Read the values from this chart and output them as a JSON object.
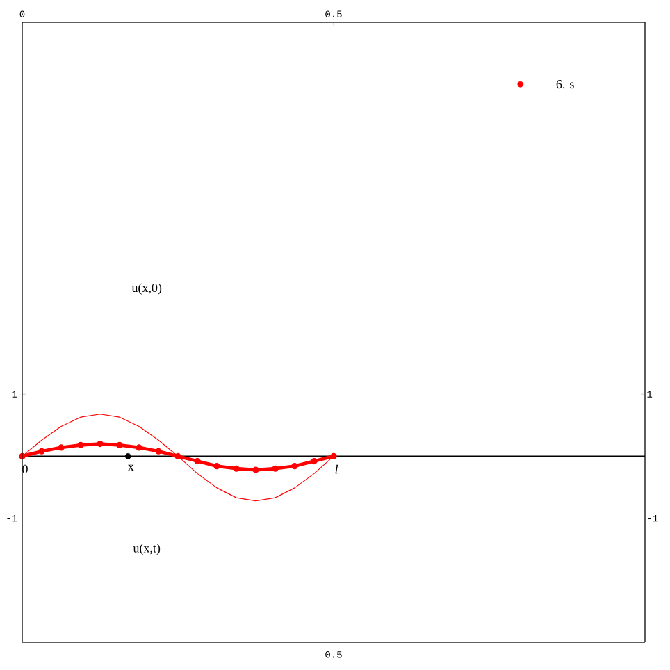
{
  "chart_data": {
    "type": "line",
    "xlim": [
      0,
      1
    ],
    "xticks": [
      {
        "value": 0,
        "label": "0"
      },
      {
        "value": 0.5,
        "label": "0.5"
      }
    ],
    "ylim": [
      -3,
      7
    ],
    "yticks": [
      {
        "value": -1,
        "label": "-1"
      },
      {
        "value": 1,
        "label": "1"
      }
    ],
    "y2lim": [
      -3,
      7
    ],
    "y2ticks": [
      {
        "value": -1,
        "label": "-1"
      },
      {
        "value": 1,
        "label": "1"
      }
    ],
    "series": [
      {
        "color": "#ff0000",
        "x": [
          0,
          0.03125,
          0.0625,
          0.09375,
          0.125,
          0.15625,
          0.1875,
          0.21875,
          0.25,
          0.28125,
          0.3125,
          0.34375,
          0.375,
          0.40625,
          0.4375,
          0.46875,
          0.5
        ],
        "values": [
          0,
          0.26,
          0.48,
          0.63,
          0.68,
          0.63,
          0.48,
          0.26,
          0,
          -0.28,
          -0.51,
          -0.67,
          -0.72,
          -0.67,
          -0.51,
          -0.28,
          0
        ]
      },
      {
        "color": "#ff0000",
        "marker": "circle",
        "x": [
          0,
          0.03125,
          0.0625,
          0.09375,
          0.125,
          0.15625,
          0.1875,
          0.21875,
          0.25,
          0.28125,
          0.3125,
          0.34375,
          0.375,
          0.40625,
          0.4375,
          0.46875,
          0.5
        ],
        "values": [
          0,
          0.08,
          0.14,
          0.18,
          0.2,
          0.18,
          0.14,
          0.08,
          0,
          -0.08,
          -0.16,
          -0.2,
          -0.22,
          -0.2,
          -0.16,
          -0.08,
          0
        ]
      },
      {
        "type": "scatter",
        "color": "#ff0000",
        "x": [
          0,
          0.5,
          0.8
        ],
        "values": [
          0,
          0,
          6.0
        ]
      },
      {
        "type": "scatter",
        "color": "#000000",
        "x": [
          0.17
        ],
        "values": [
          0
        ]
      }
    ],
    "ref_lines": [
      {
        "axis": "y",
        "value": 0,
        "color": "#000000"
      }
    ],
    "annotations": [
      {
        "text": "6. s",
        "x": 0.8,
        "y": 6.0
      },
      {
        "text": "0",
        "x": 0,
        "y": 0
      },
      {
        "text": "x",
        "x": 0.17,
        "y": 0
      },
      {
        "text": "*l*",
        "x": 0.5,
        "y": 0
      },
      "u(x,0)",
      "u(x,t)",
      "0.5"
    ]
  }
}
